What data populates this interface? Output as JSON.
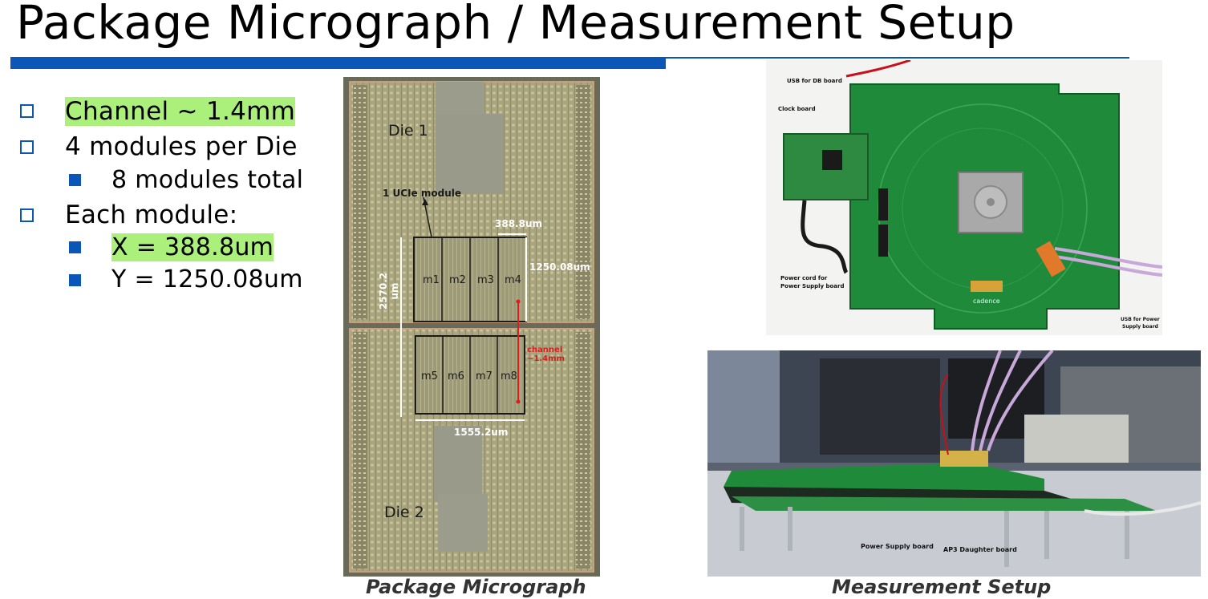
{
  "slide": {
    "title": "Package Micrograph / Measurement Setup",
    "bullets": [
      {
        "level": 1,
        "text": "Channel ~ 1.4mm",
        "highlight": true
      },
      {
        "level": 1,
        "text": "4 modules per Die",
        "highlight": false
      },
      {
        "level": 2,
        "text": "8 modules total",
        "highlight": false
      },
      {
        "level": 1,
        "text": "Each module:",
        "highlight": false
      },
      {
        "level": 2,
        "text": "X = 388.8um",
        "highlight": true
      },
      {
        "level": 2,
        "text": "Y = 1250.08um",
        "highlight": false
      }
    ]
  },
  "micrograph": {
    "caption": "Package Micrograph",
    "die1": "Die 1",
    "die2": "Die 2",
    "module_label": "1 UCIe module",
    "width_label": "388.8um",
    "height_label": "1250.08um",
    "total_height_label": "2570.2 um",
    "total_width_label": "1555.2um",
    "channel_label": "channel ~1.4mm",
    "modules_top": [
      "m1",
      "m2",
      "m3",
      "m4"
    ],
    "modules_bottom": [
      "m5",
      "m6",
      "m7",
      "m8"
    ]
  },
  "board_photo": {
    "usb_db": "USB for DB board",
    "clock": "Clock board",
    "power_cord_1": "Power cord for",
    "power_cord_2": "Power Supply board",
    "usb_power_1": "USB for Power",
    "usb_power_2": "Supply board",
    "brand": "cadence"
  },
  "setup_photo": {
    "caption": "Measurement Setup",
    "power_board": "Power Supply board",
    "daughter_board": "AP3 Daughter board"
  },
  "colors": {
    "accent": "#0a57b8",
    "highlight": "#aaf07a",
    "pcb_green": "#1f8a3a",
    "annotation_red": "#d81e1e"
  }
}
